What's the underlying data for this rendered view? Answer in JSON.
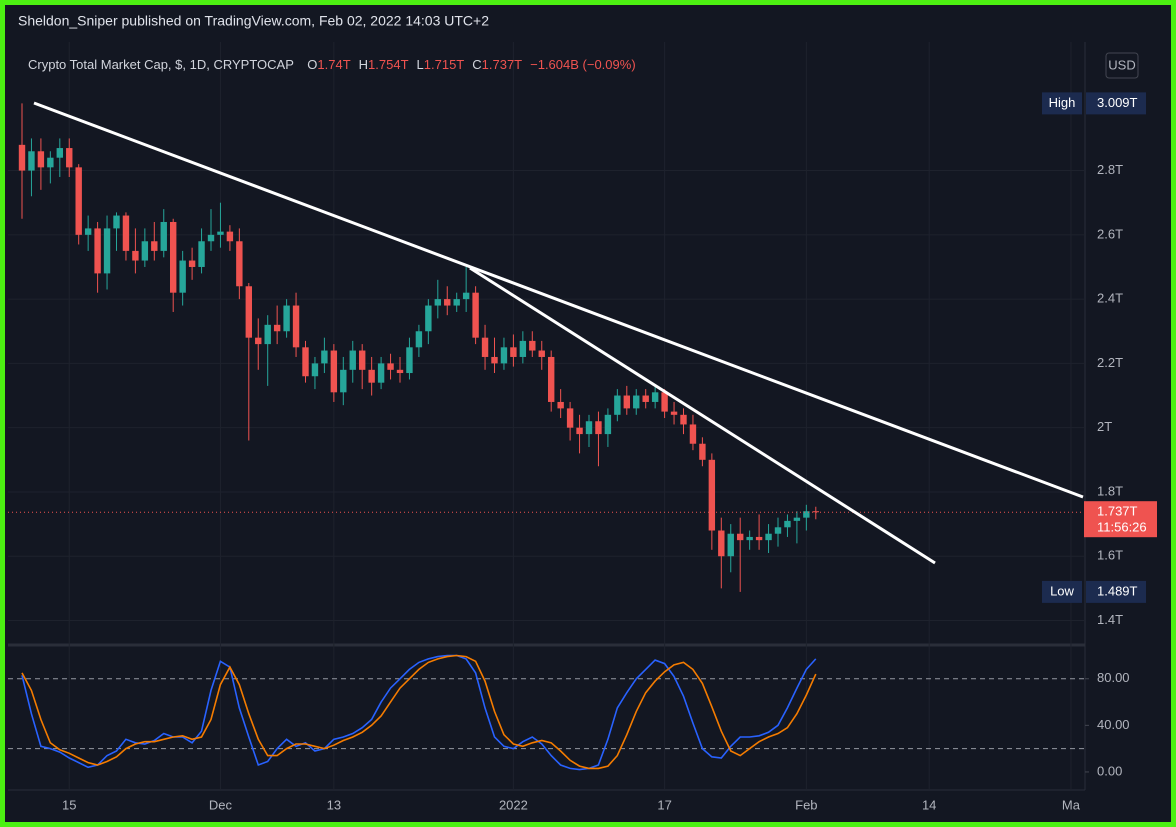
{
  "header": {
    "publisher": "Sheldon_Sniper published on TradingView.com, Feb 02, 2022 14:03 UTC+2"
  },
  "chart_data": {
    "type": "candlestick",
    "title": "Crypto Total Market Cap, $, 1D, CRYPTOCAP",
    "legend_values": [
      {
        "key": "O",
        "value": "1.74T"
      },
      {
        "key": "H",
        "value": "1.754T"
      },
      {
        "key": "L",
        "value": "1.715T"
      },
      {
        "key": "C",
        "value": "1.737T"
      }
    ],
    "change": "−1.604B (−0.09%)",
    "currency": "USD",
    "up_color": "#26a69a",
    "down_color": "#ef5350",
    "grid": true,
    "categories": [
      null,
      null,
      null,
      null,
      null,
      "15",
      null,
      null,
      null,
      null,
      null,
      null,
      null,
      null,
      null,
      null,
      null,
      null,
      null,
      null,
      null,
      "Dec",
      null,
      null,
      null,
      null,
      null,
      null,
      null,
      null,
      null,
      null,
      null,
      "13",
      null,
      null,
      null,
      null,
      null,
      null,
      null,
      null,
      null,
      null,
      null,
      null,
      null,
      null,
      null,
      null,
      null,
      null,
      "2022",
      null,
      null,
      null,
      null,
      null,
      null,
      null,
      null,
      null,
      null,
      null,
      null,
      null,
      null,
      null,
      "17",
      null,
      null,
      null,
      null,
      null,
      null,
      null,
      null,
      null,
      null,
      null,
      null,
      null,
      null,
      "Feb",
      null,
      null,
      null,
      null,
      null,
      null,
      null,
      null,
      null,
      null,
      null,
      null,
      "14",
      null,
      null,
      null,
      null,
      null,
      null,
      null,
      null,
      null,
      null,
      null,
      null,
      null,
      null,
      "Ma",
      null
    ],
    "open": [
      2.88,
      2.8,
      2.86,
      2.81,
      2.84,
      2.87,
      2.81,
      2.6,
      2.62,
      2.48,
      2.62,
      2.66,
      2.55,
      2.52,
      2.58,
      2.55,
      2.64,
      2.42,
      2.52,
      2.5,
      2.58,
      2.6,
      2.61,
      2.58,
      2.44,
      2.28,
      2.26,
      2.32,
      2.3,
      2.38,
      2.25,
      2.16,
      2.2,
      2.24,
      2.11,
      2.18,
      2.24,
      2.18,
      2.14,
      2.2,
      2.18,
      2.17,
      2.25,
      2.3,
      2.38,
      2.4,
      2.38,
      2.4,
      2.42,
      2.28,
      2.22,
      2.2,
      2.25,
      2.22,
      2.27,
      2.24,
      2.22,
      2.08,
      2.06,
      2.0,
      1.98,
      2.02,
      1.98,
      2.04,
      2.1,
      2.06,
      2.1,
      2.08,
      2.11,
      2.05,
      2.04,
      2.01,
      1.95,
      1.9,
      1.68,
      1.6,
      1.67,
      1.65,
      1.66,
      1.65,
      1.67,
      1.69,
      1.71,
      1.72,
      1.74,
      null,
      null,
      null,
      null,
      null,
      null,
      null,
      null,
      null,
      null,
      null,
      null,
      null,
      null,
      null,
      null,
      null,
      null,
      null,
      null,
      null,
      null,
      null,
      null,
      null,
      null,
      null,
      null
    ],
    "high": [
      3.009,
      2.9,
      2.9,
      2.86,
      2.9,
      2.9,
      2.82,
      2.66,
      2.64,
      2.66,
      2.67,
      2.67,
      2.62,
      2.62,
      2.64,
      2.68,
      2.65,
      2.55,
      2.56,
      2.62,
      2.68,
      2.7,
      2.63,
      2.62,
      2.45,
      2.34,
      2.35,
      2.38,
      2.4,
      2.42,
      2.27,
      2.22,
      2.28,
      2.26,
      2.22,
      2.27,
      2.26,
      2.22,
      2.22,
      2.23,
      2.22,
      2.28,
      2.32,
      2.4,
      2.46,
      2.44,
      2.42,
      2.5,
      2.44,
      2.32,
      2.28,
      2.28,
      2.29,
      2.3,
      2.3,
      2.27,
      2.24,
      2.12,
      2.08,
      2.04,
      2.04,
      2.05,
      2.06,
      2.12,
      2.13,
      2.12,
      2.12,
      2.13,
      2.12,
      2.08,
      2.06,
      2.04,
      1.97,
      1.92,
      1.72,
      1.7,
      1.72,
      1.68,
      1.73,
      1.7,
      1.72,
      1.73,
      1.74,
      1.76,
      1.754,
      null,
      null,
      null,
      null,
      null,
      null,
      null,
      null,
      null,
      null,
      null,
      null,
      null,
      null,
      null,
      null,
      null,
      null,
      null,
      null,
      null,
      null,
      null,
      null,
      null,
      null,
      null,
      null
    ],
    "low": [
      2.65,
      2.72,
      2.74,
      2.76,
      2.78,
      2.78,
      2.57,
      2.55,
      2.42,
      2.43,
      2.55,
      2.52,
      2.48,
      2.5,
      2.52,
      2.53,
      2.36,
      2.38,
      2.46,
      2.48,
      2.55,
      2.56,
      2.55,
      2.4,
      1.96,
      2.18,
      2.13,
      2.26,
      2.28,
      2.22,
      2.14,
      2.12,
      2.17,
      2.08,
      2.07,
      2.14,
      2.12,
      2.1,
      2.12,
      2.15,
      2.14,
      2.15,
      2.22,
      2.26,
      2.34,
      2.35,
      2.36,
      2.36,
      2.26,
      2.18,
      2.17,
      2.18,
      2.19,
      2.2,
      2.22,
      2.18,
      2.05,
      2.03,
      1.96,
      1.92,
      1.94,
      1.88,
      1.94,
      2.02,
      2.04,
      2.04,
      2.06,
      2.06,
      2.03,
      2.01,
      1.98,
      1.93,
      1.88,
      1.62,
      1.5,
      1.55,
      1.489,
      1.62,
      1.62,
      1.61,
      1.63,
      1.66,
      1.64,
      1.68,
      1.715,
      null,
      null,
      null,
      null,
      null,
      null,
      null,
      null,
      null,
      null,
      null,
      null,
      null,
      null,
      null,
      null,
      null,
      null,
      null,
      null,
      null,
      null,
      null,
      null,
      null,
      null,
      null,
      null
    ],
    "close": [
      2.8,
      2.86,
      2.81,
      2.84,
      2.87,
      2.81,
      2.6,
      2.62,
      2.48,
      2.62,
      2.66,
      2.55,
      2.52,
      2.58,
      2.55,
      2.64,
      2.42,
      2.52,
      2.5,
      2.58,
      2.6,
      2.61,
      2.58,
      2.44,
      2.28,
      2.26,
      2.32,
      2.3,
      2.38,
      2.25,
      2.16,
      2.2,
      2.24,
      2.11,
      2.18,
      2.24,
      2.18,
      2.14,
      2.2,
      2.18,
      2.17,
      2.25,
      2.3,
      2.38,
      2.4,
      2.38,
      2.4,
      2.42,
      2.28,
      2.22,
      2.2,
      2.25,
      2.22,
      2.27,
      2.24,
      2.22,
      2.08,
      2.06,
      2.0,
      1.98,
      2.02,
      1.98,
      2.04,
      2.1,
      2.06,
      2.1,
      2.08,
      2.11,
      2.05,
      2.04,
      2.01,
      1.95,
      1.9,
      1.68,
      1.6,
      1.67,
      1.65,
      1.66,
      1.65,
      1.67,
      1.69,
      1.71,
      1.72,
      1.74,
      1.737,
      null,
      null,
      null,
      null,
      null,
      null,
      null,
      null,
      null,
      null,
      null,
      null,
      null,
      null,
      null,
      null,
      null,
      null,
      null,
      null,
      null,
      null,
      null,
      null,
      null,
      null,
      null,
      null
    ],
    "ylim": [
      1.33,
      3.2
    ],
    "yticks": [
      {
        "value": 1.4,
        "label": "1.4T"
      },
      {
        "value": 1.6,
        "label": "1.6T"
      },
      {
        "value": 1.8,
        "label": "1.8T"
      },
      {
        "value": 2,
        "label": "2T"
      },
      {
        "value": 2.2,
        "label": "2.2T"
      },
      {
        "value": 2.4,
        "label": "2.4T"
      },
      {
        "value": 2.6,
        "label": "2.6T"
      },
      {
        "value": 2.8,
        "label": "2.8T"
      }
    ],
    "high_marker": {
      "name": "High",
      "value": 3.009,
      "label": "3.009T"
    },
    "low_marker": {
      "name": "Low",
      "value": 1.489,
      "label": "1.489T"
    },
    "last_price": {
      "value": 1.737,
      "label": "1.737T",
      "countdown": "11:56:26"
    },
    "oscillator": {
      "ylim": [
        -15.5,
        106.4
      ],
      "yticks": [
        {
          "value": 0,
          "label": "0.00"
        },
        {
          "value": 40,
          "label": "40.00"
        },
        {
          "value": 80,
          "label": "80.00"
        }
      ],
      "bands": [
        20,
        80
      ],
      "series": [
        {
          "color": "#2962ff",
          "values": [
            83,
            50,
            22,
            20,
            17,
            12,
            8,
            4,
            6,
            14,
            18,
            28,
            25,
            24,
            27,
            33,
            30,
            30,
            25,
            35,
            70,
            95,
            90,
            55,
            30,
            6,
            9,
            20,
            28,
            22,
            25,
            18,
            20,
            28,
            30,
            33,
            38,
            45,
            60,
            72,
            80,
            88,
            94,
            97,
            99,
            100,
            100,
            97,
            85,
            55,
            30,
            22,
            20,
            26,
            30,
            24,
            14,
            6,
            3,
            2,
            3,
            6,
            28,
            55,
            68,
            80,
            88,
            96,
            93,
            82,
            65,
            42,
            20,
            13,
            12,
            22,
            30,
            30,
            31,
            34,
            40,
            55,
            72,
            88,
            97,
            null,
            null,
            null,
            null,
            null,
            null,
            null,
            null,
            null,
            null,
            null,
            null,
            null,
            null,
            null,
            null,
            null,
            null,
            null,
            null,
            null,
            null,
            null,
            null,
            null,
            null,
            null,
            null
          ]
        },
        {
          "color": "#f57c00",
          "values": [
            85,
            70,
            45,
            25,
            19,
            16,
            12,
            8,
            6,
            9,
            13,
            20,
            24,
            26,
            26,
            28,
            30,
            31,
            28,
            30,
            45,
            75,
            90,
            75,
            50,
            28,
            14,
            14,
            20,
            24,
            24,
            22,
            20,
            23,
            27,
            30,
            34,
            40,
            48,
            60,
            72,
            80,
            88,
            94,
            97,
            99,
            100,
            99,
            95,
            78,
            52,
            32,
            24,
            22,
            25,
            27,
            25,
            18,
            10,
            5,
            3,
            3,
            5,
            14,
            32,
            52,
            68,
            78,
            86,
            92,
            94,
            88,
            76,
            56,
            35,
            18,
            14,
            20,
            26,
            30,
            33,
            38,
            50,
            66,
            84,
            null,
            null,
            null,
            null,
            null,
            null,
            null,
            null,
            null,
            null,
            null,
            null,
            null,
            null,
            null,
            null,
            null,
            null,
            null,
            null,
            null,
            null,
            null,
            null,
            null,
            null,
            null,
            null
          ]
        }
      ]
    }
  }
}
